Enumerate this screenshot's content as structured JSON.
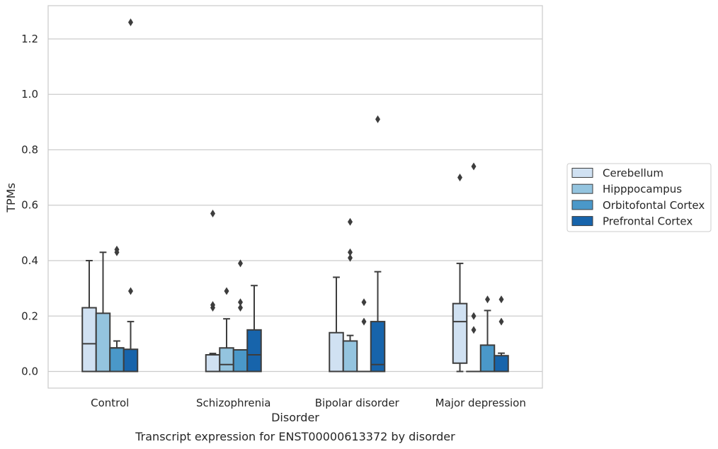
{
  "chart_data": {
    "type": "box",
    "xlabel": "Disorder",
    "ylabel": "TPMs",
    "caption": "Transcript expression for ENST00000613372 by disorder",
    "categories": [
      "Control",
      "Schizophrenia",
      "Bipolar disorder",
      "Major depression"
    ],
    "ylim": [
      -0.06,
      1.32
    ],
    "yticks": [
      0.0,
      0.2,
      0.4,
      0.6,
      0.8,
      1.0,
      1.2
    ],
    "ytick_labels": [
      "0.0",
      "0.2",
      "0.4",
      "0.6",
      "0.8",
      "1.0",
      "1.2"
    ],
    "grid": "horizontal",
    "legend_position": "right",
    "series": [
      {
        "name": "Cerebellum",
        "color": "#d0e1f2",
        "boxes": [
          {
            "q1": 0.0,
            "median": 0.1,
            "q3": 0.23,
            "whisker_low": 0.0,
            "whisker_high": 0.4,
            "outliers": []
          },
          {
            "q1": 0.0,
            "median": 0.06,
            "q3": 0.06,
            "whisker_low": 0.0,
            "whisker_high": 0.065,
            "outliers": [
              0.23,
              0.24,
              0.57
            ]
          },
          {
            "q1": 0.0,
            "median": 0.0,
            "q3": 0.14,
            "whisker_low": 0.0,
            "whisker_high": 0.34,
            "outliers": []
          },
          {
            "q1": 0.03,
            "median": 0.18,
            "q3": 0.245,
            "whisker_low": 0.0,
            "whisker_high": 0.39,
            "outliers": [
              0.7
            ]
          }
        ]
      },
      {
        "name": "Hipppocampus",
        "color": "#94c4df",
        "boxes": [
          {
            "q1": 0.0,
            "median": 0.0,
            "q3": 0.21,
            "whisker_low": 0.0,
            "whisker_high": 0.43,
            "outliers": []
          },
          {
            "q1": 0.0,
            "median": 0.025,
            "q3": 0.085,
            "whisker_low": 0.0,
            "whisker_high": 0.19,
            "outliers": [
              0.29
            ]
          },
          {
            "q1": 0.0,
            "median": 0.0,
            "q3": 0.11,
            "whisker_low": 0.0,
            "whisker_high": 0.13,
            "outliers": [
              0.41,
              0.43,
              0.54
            ]
          },
          {
            "q1": 0.0,
            "median": 0.0,
            "q3": 0.0,
            "whisker_low": 0.0,
            "whisker_high": 0.0,
            "outliers": [
              0.15,
              0.2,
              0.74
            ]
          }
        ]
      },
      {
        "name": "Orbitofontal Cortex",
        "color": "#4a98c9",
        "boxes": [
          {
            "q1": 0.0,
            "median": 0.085,
            "q3": 0.085,
            "whisker_low": 0.0,
            "whisker_high": 0.11,
            "outliers": [
              0.43,
              0.44
            ]
          },
          {
            "q1": 0.0,
            "median": 0.078,
            "q3": 0.078,
            "whisker_low": 0.0,
            "whisker_high": 0.078,
            "outliers": [
              0.23,
              0.25,
              0.39
            ]
          },
          {
            "q1": 0.0,
            "median": 0.0,
            "q3": 0.0,
            "whisker_low": 0.0,
            "whisker_high": 0.0,
            "outliers": [
              0.18,
              0.25
            ]
          },
          {
            "q1": 0.0,
            "median": 0.0,
            "q3": 0.095,
            "whisker_low": 0.0,
            "whisker_high": 0.22,
            "outliers": [
              0.26
            ]
          }
        ]
      },
      {
        "name": "Prefrontal Cortex",
        "color": "#1764ab",
        "boxes": [
          {
            "q1": 0.0,
            "median": 0.0,
            "q3": 0.08,
            "whisker_low": 0.0,
            "whisker_high": 0.18,
            "outliers": [
              0.29,
              1.26
            ]
          },
          {
            "q1": 0.0,
            "median": 0.06,
            "q3": 0.15,
            "whisker_low": 0.0,
            "whisker_high": 0.31,
            "outliers": []
          },
          {
            "q1": 0.0,
            "median": 0.025,
            "q3": 0.18,
            "whisker_low": 0.0,
            "whisker_high": 0.36,
            "outliers": [
              0.91
            ]
          },
          {
            "q1": 0.0,
            "median": 0.0,
            "q3": 0.057,
            "whisker_low": 0.0,
            "whisker_high": 0.066,
            "outliers": [
              0.18,
              0.26
            ]
          }
        ]
      }
    ]
  }
}
